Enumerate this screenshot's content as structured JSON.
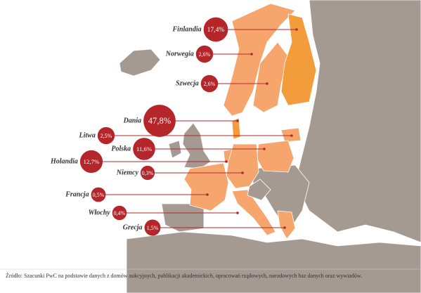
{
  "countries": [
    {
      "name": "Finlandia",
      "value": 17.4,
      "label": "17,4%"
    },
    {
      "name": "Norwegia",
      "value": 2.6,
      "label": "2,6%"
    },
    {
      "name": "Szwecja",
      "value": 2.6,
      "label": "2,6%"
    },
    {
      "name": "Dania",
      "value": 47.8,
      "label": "47,8%"
    },
    {
      "name": "Litwa",
      "value": 2.5,
      "label": "2,5%"
    },
    {
      "name": "Polska",
      "value": 11.6,
      "label": "11,6%"
    },
    {
      "name": "Holandia",
      "value": 12.7,
      "label": "12,7%"
    },
    {
      "name": "Niemcy",
      "value": 0.3,
      "label": "0,3%"
    },
    {
      "name": "Francja",
      "value": 0.5,
      "label": "0,5%"
    },
    {
      "name": "Włochy",
      "value": 0.4,
      "label": "0,4%"
    },
    {
      "name": "Grecja",
      "value": 1.5,
      "label": "1,5%"
    }
  ],
  "source": "Źródło: Szacunki PwC na podstawie danych z domów aukcyjnych, publikacji akademickich, opracowań rządowych, narodowych baz danych oraz wywiadów."
}
